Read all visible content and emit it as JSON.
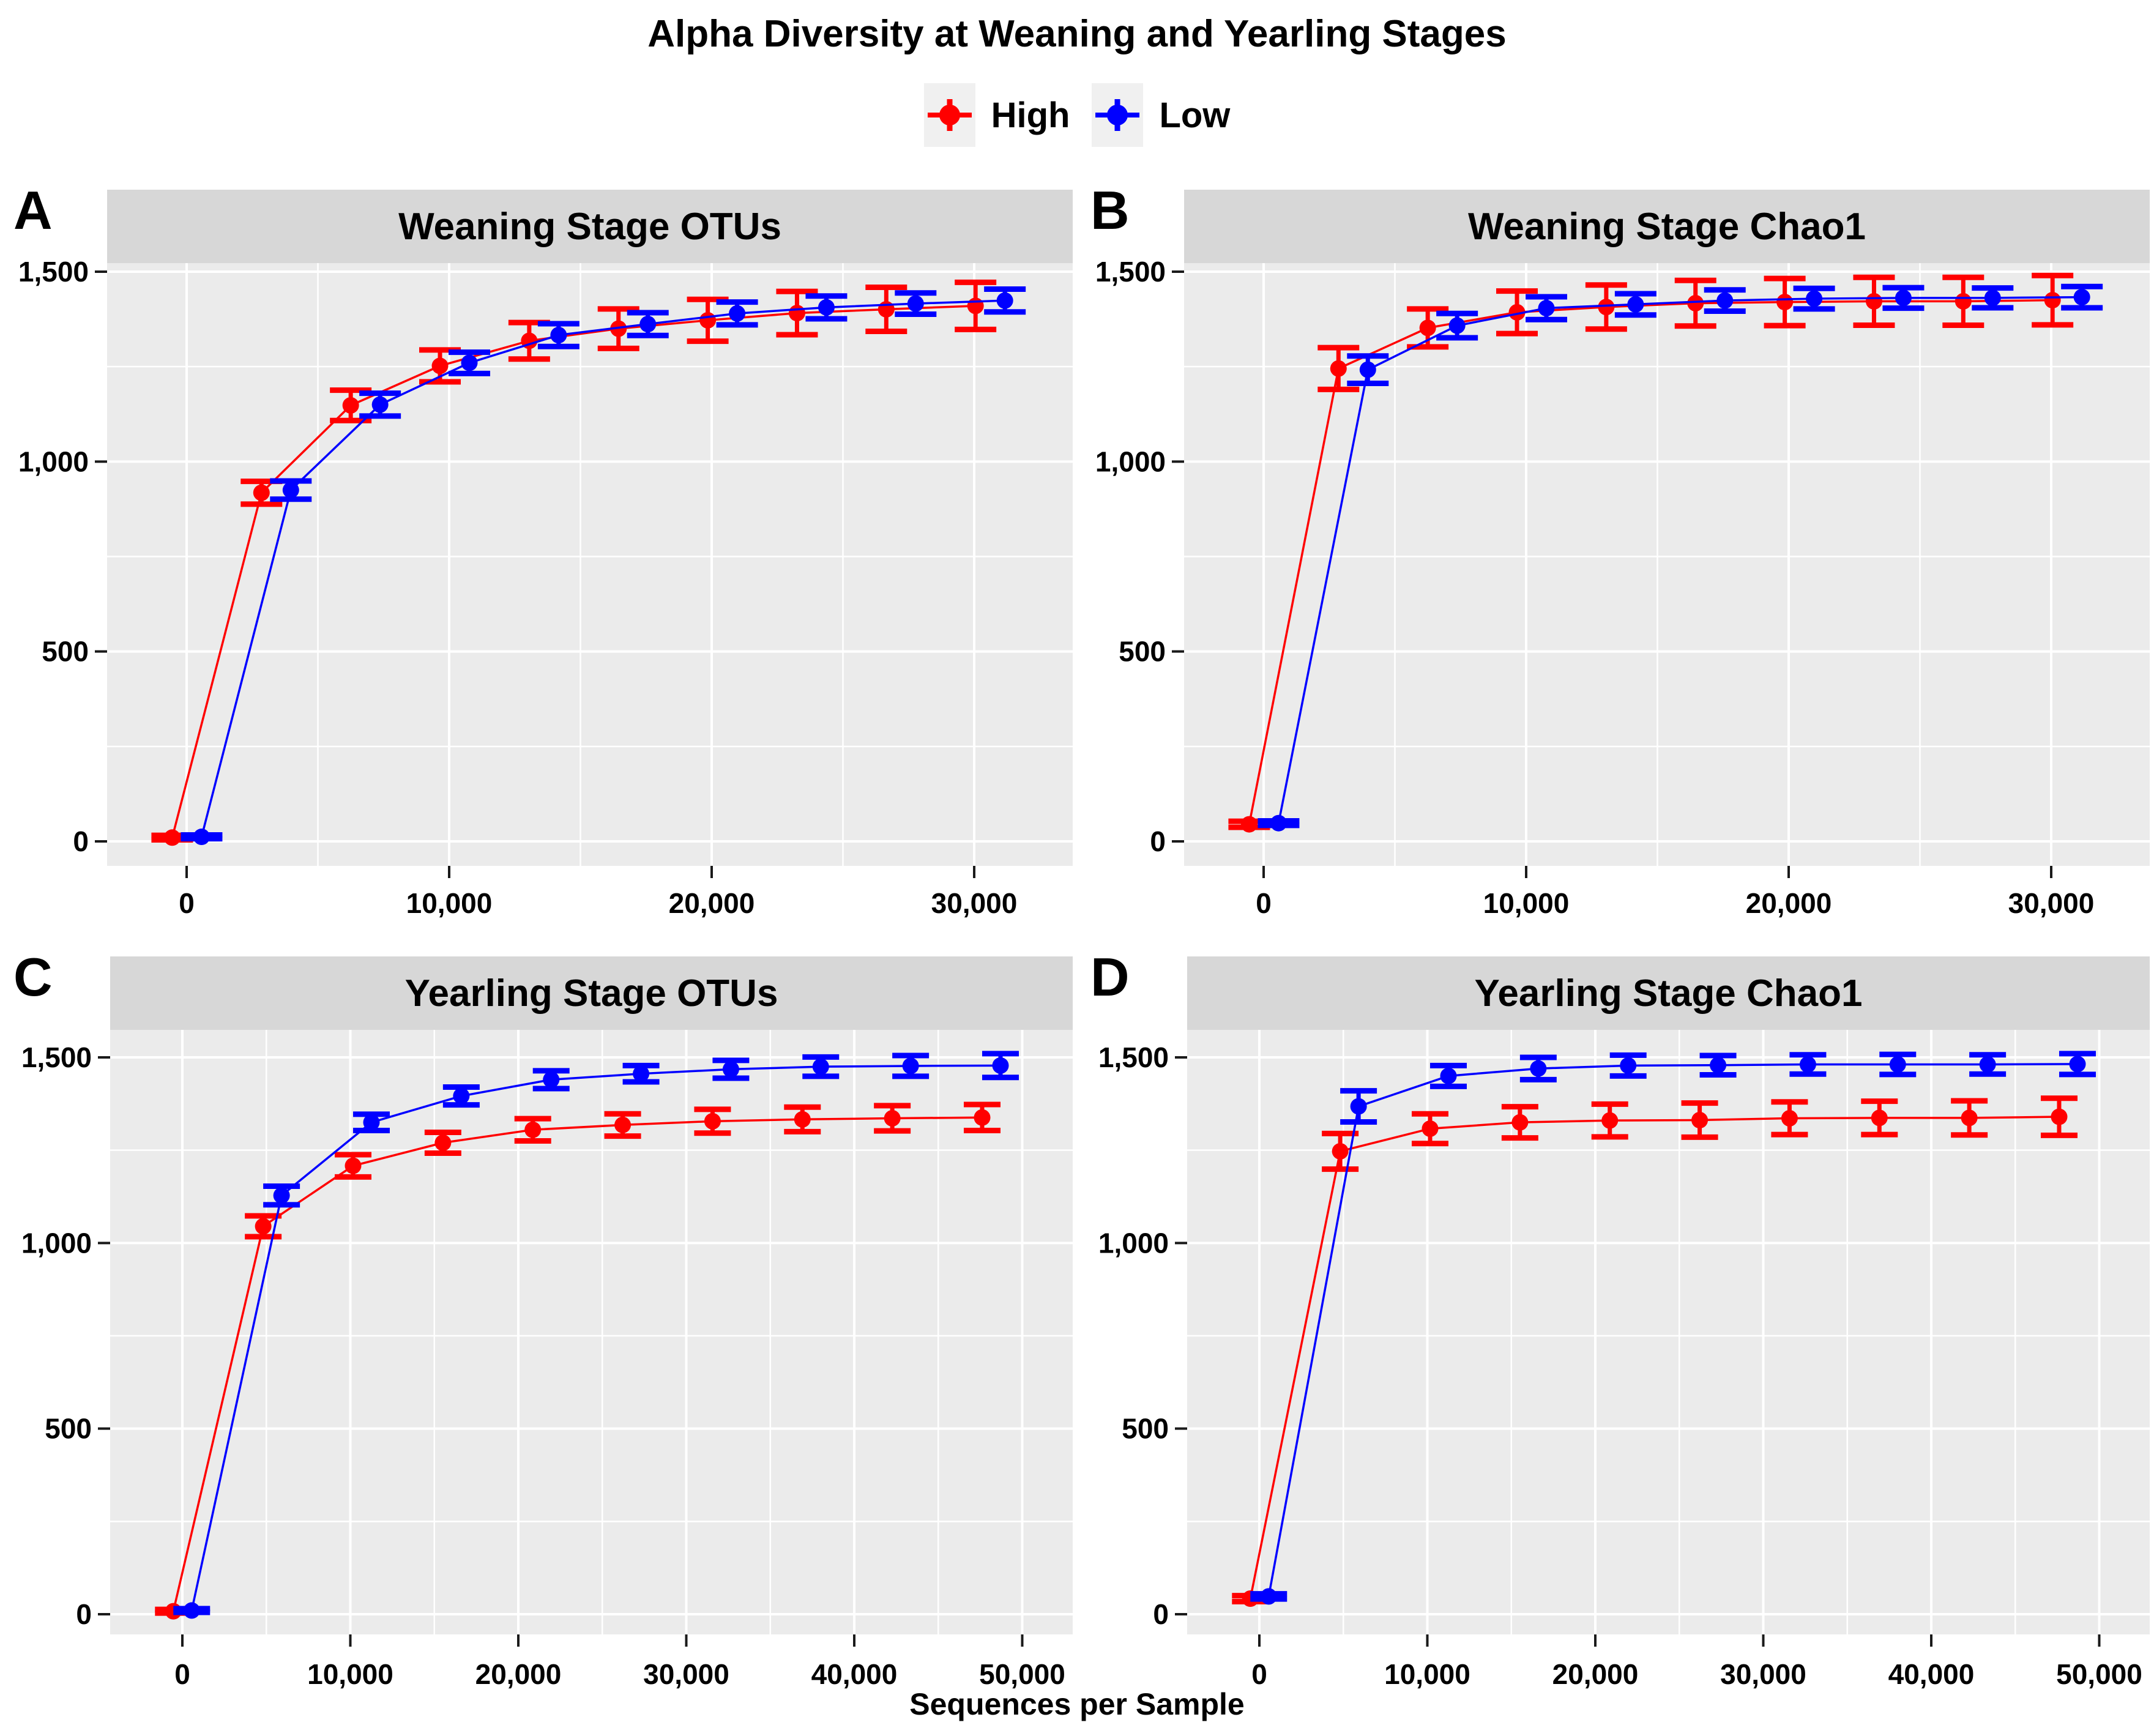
{
  "title": "Alpha Diversity at Weaning and Yearling Stages",
  "legend": {
    "items": [
      {
        "label": "High",
        "color": "#FF0000"
      },
      {
        "label": "Low",
        "color": "#0000FF"
      }
    ]
  },
  "axis": {
    "x_title": "Sequences per Sample",
    "y_tick_values": [
      0,
      500,
      1000,
      1500
    ],
    "y_tick_labels": [
      "0",
      "500",
      "1,000",
      "1,500"
    ],
    "y_minor_ticks": [
      250,
      750,
      1250
    ]
  },
  "colors": {
    "strip_bg": "#D7D7D7",
    "panel_bg": "#EBEBEB",
    "gridline": "#FFFFFF",
    "tick": "#1A1A1A",
    "text": "#000000",
    "high": "#FF0000",
    "low": "#0000FF",
    "legend_key_bg": "#F0F0F0"
  },
  "chart_data": [
    {
      "letter": "A",
      "type": "line",
      "title": "Weaning Stage OTUs",
      "ylabel": "",
      "ylim": [
        0,
        1500
      ],
      "xlim": [
        0,
        31000
      ],
      "grid": true,
      "error_bars": true,
      "x_tick_values": [
        0,
        10000,
        20000,
        30000
      ],
      "x_tick_labels": [
        "0",
        "10,000",
        "20,000",
        "30,000"
      ],
      "x_minor_ticks": [
        5000,
        15000,
        25000
      ],
      "x": [
        10,
        3410,
        6810,
        10210,
        13610,
        17010,
        20410,
        23810,
        27210,
        30610
      ],
      "series": [
        {
          "name": "High",
          "color": "#FF0000",
          "values": [
            10,
            918,
            1148,
            1252,
            1318,
            1350,
            1372,
            1391,
            1401,
            1410
          ],
          "errors": [
            6,
            30,
            40,
            42,
            48,
            52,
            55,
            57,
            58,
            62
          ]
        },
        {
          "name": "Low",
          "color": "#0000FF",
          "values": [
            12,
            925,
            1150,
            1260,
            1333,
            1362,
            1390,
            1406,
            1416,
            1424
          ],
          "errors": [
            5,
            24,
            30,
            28,
            30,
            30,
            30,
            30,
            28,
            30
          ]
        }
      ]
    },
    {
      "letter": "B",
      "type": "line",
      "title": "Weaning Stage Chao1",
      "ylabel": "",
      "ylim": [
        0,
        1500
      ],
      "xlim": [
        0,
        31000
      ],
      "grid": true,
      "error_bars": true,
      "x_tick_values": [
        0,
        10000,
        20000,
        30000
      ],
      "x_tick_labels": [
        "0",
        "10,000",
        "20,000",
        "30,000"
      ],
      "x_minor_ticks": [
        5000,
        15000,
        25000
      ],
      "x": [
        10,
        3410,
        6810,
        10210,
        13610,
        17010,
        20410,
        23810,
        27210,
        30610
      ],
      "series": [
        {
          "name": "High",
          "color": "#FF0000",
          "values": [
            45,
            1245,
            1352,
            1393,
            1407,
            1417,
            1420,
            1422,
            1422,
            1425
          ],
          "errors": [
            8,
            55,
            50,
            56,
            58,
            60,
            62,
            63,
            63,
            65
          ]
        },
        {
          "name": "Low",
          "color": "#0000FF",
          "values": [
            48,
            1242,
            1358,
            1404,
            1414,
            1424,
            1429,
            1431,
            1431,
            1433
          ],
          "errors": [
            6,
            36,
            32,
            30,
            28,
            28,
            27,
            27,
            26,
            28
          ]
        }
      ]
    },
    {
      "letter": "C",
      "type": "line",
      "title": "Yearling Stage OTUs",
      "ylabel": "",
      "ylim": [
        0,
        1500
      ],
      "xlim": [
        0,
        50000
      ],
      "grid": true,
      "error_bars": true,
      "x_tick_values": [
        0,
        10000,
        20000,
        30000,
        40000,
        50000
      ],
      "x_tick_labels": [
        "0",
        "10,000",
        "20,000",
        "30,000",
        "40,000",
        "50,000"
      ],
      "x_minor_ticks": [
        5000,
        15000,
        25000,
        35000,
        45000
      ],
      "x": [
        10,
        5360,
        10710,
        16060,
        21410,
        26760,
        32110,
        37460,
        42810,
        48160
      ],
      "series": [
        {
          "name": "High",
          "color": "#FF0000",
          "values": [
            8,
            1045,
            1208,
            1270,
            1305,
            1318,
            1328,
            1333,
            1336,
            1338
          ],
          "errors": [
            5,
            28,
            30,
            28,
            30,
            30,
            32,
            33,
            34,
            35
          ]
        },
        {
          "name": "Low",
          "color": "#0000FF",
          "values": [
            10,
            1128,
            1325,
            1396,
            1440,
            1456,
            1468,
            1475,
            1477,
            1478
          ],
          "errors": [
            5,
            25,
            22,
            24,
            24,
            22,
            24,
            26,
            28,
            32
          ]
        }
      ]
    },
    {
      "letter": "D",
      "type": "line",
      "title": "Yearling Stage Chao1",
      "ylabel": "",
      "ylim": [
        0,
        1500
      ],
      "xlim": [
        0,
        50000
      ],
      "grid": true,
      "error_bars": true,
      "x_tick_values": [
        0,
        10000,
        20000,
        30000,
        40000,
        50000
      ],
      "x_tick_labels": [
        "0",
        "10,000",
        "20,000",
        "30,000",
        "40,000",
        "50,000"
      ],
      "x_minor_ticks": [
        5000,
        15000,
        25000,
        35000,
        45000
      ],
      "x": [
        10,
        5360,
        10710,
        16060,
        21410,
        26760,
        32110,
        37460,
        42810,
        48160
      ],
      "series": [
        {
          "name": "High",
          "color": "#FF0000",
          "values": [
            42,
            1247,
            1308,
            1325,
            1330,
            1331,
            1336,
            1337,
            1337,
            1340
          ],
          "errors": [
            8,
            48,
            40,
            42,
            44,
            46,
            44,
            45,
            46,
            50
          ]
        },
        {
          "name": "Low",
          "color": "#0000FF",
          "values": [
            48,
            1368,
            1450,
            1470,
            1478,
            1479,
            1481,
            1481,
            1481,
            1482
          ],
          "errors": [
            7,
            42,
            28,
            30,
            28,
            26,
            26,
            27,
            26,
            28
          ]
        }
      ]
    }
  ]
}
